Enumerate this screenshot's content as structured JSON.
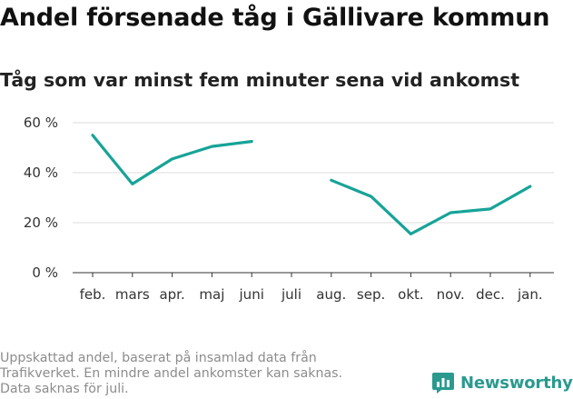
{
  "header": {
    "title": "Andel försenade tåg i Gällivare kommun",
    "subtitle": "Tåg som var minst fem minuter sena vid ankomst"
  },
  "footnote": {
    "lines": [
      "Uppskattad andel, baserat på insamlad data från",
      "Trafikverket. En mindre andel ankomster kan saknas.",
      "Data saknas för juli."
    ]
  },
  "brand": {
    "name": "Newsworthy",
    "icon": "newsworthy-logo-icon",
    "color": "#2a9a8f"
  },
  "chart_data": {
    "type": "line",
    "categories": [
      "feb.",
      "mars",
      "apr.",
      "maj",
      "juni",
      "juli",
      "aug.",
      "sep.",
      "okt.",
      "nov.",
      "dec.",
      "jan."
    ],
    "series": [
      {
        "values": [
          55,
          35.5,
          45.5,
          50.5,
          52.5,
          null,
          37,
          30.5,
          15.5,
          24,
          25.5,
          34.5
        ],
        "color": "#17a398"
      }
    ],
    "yticks": [
      0,
      20,
      40,
      60
    ],
    "ytick_labels": [
      "0 %",
      "20 %",
      "40 %",
      "60 %"
    ],
    "ylim": [
      0,
      60
    ],
    "grid": true,
    "legend": "none"
  }
}
